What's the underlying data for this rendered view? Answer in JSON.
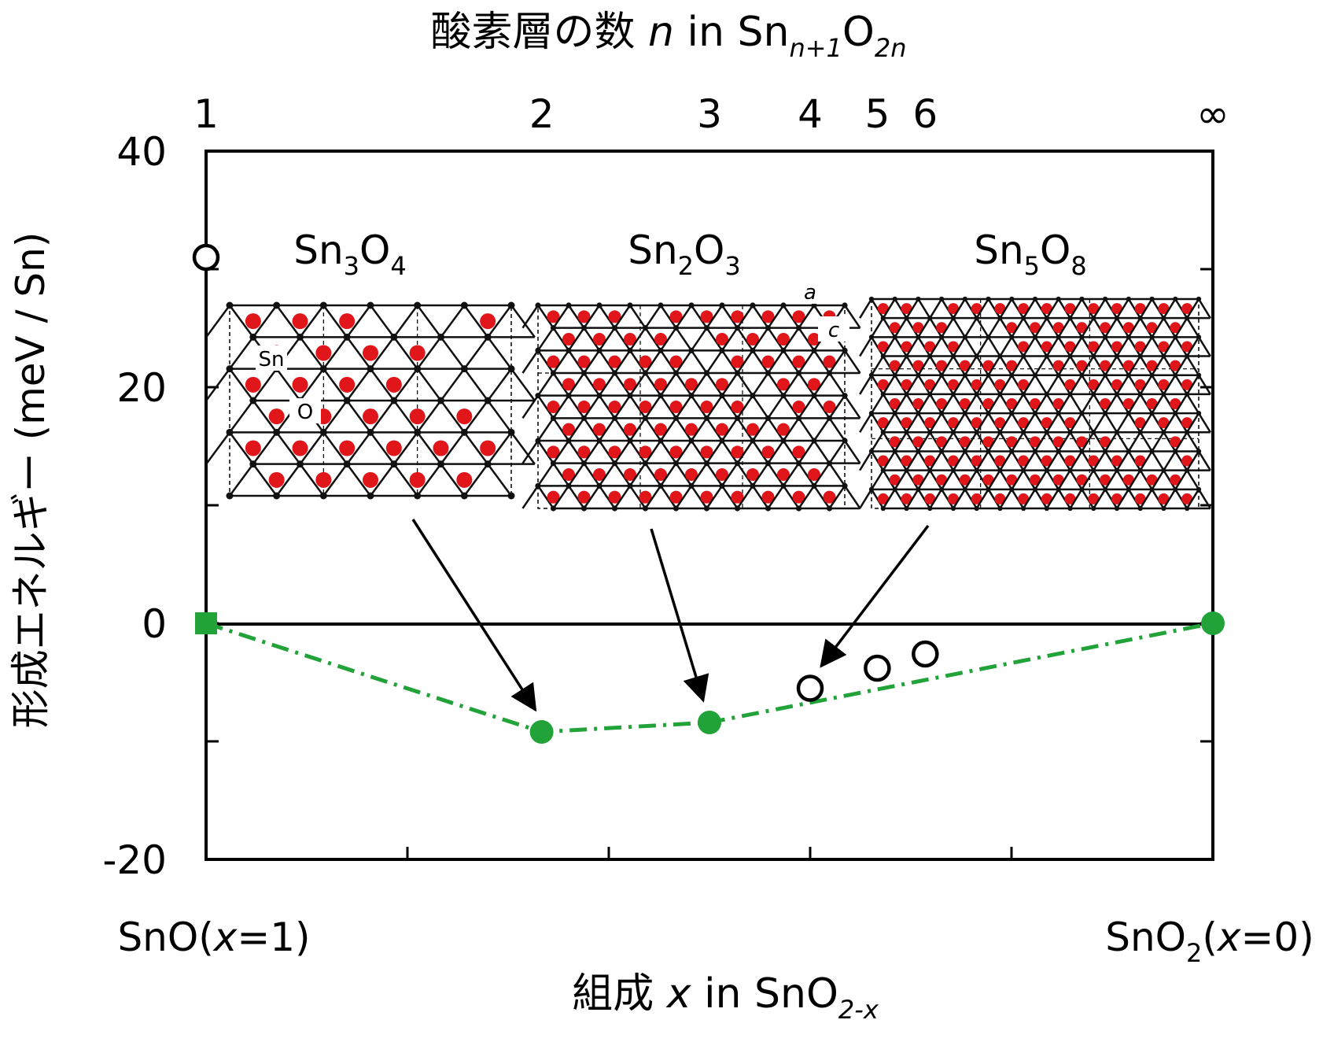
{
  "top_axis": {
    "label_main": "酸素層の数 ",
    "label_n": "n",
    "label_in": " in Sn",
    "label_sub1": "n+1",
    "label_O": "O",
    "label_sub2": "2n",
    "ticks": [
      {
        "label": "1",
        "x": 1.0
      },
      {
        "label": "2",
        "x": 0.6667
      },
      {
        "label": "3",
        "x": 0.5
      },
      {
        "label": "4",
        "x": 0.4
      },
      {
        "label": "5",
        "x": 0.3333
      },
      {
        "label": "6",
        "x": 0.2857
      },
      {
        "label": "∞",
        "x": 0.0
      }
    ]
  },
  "bottom_axis": {
    "label_main": "組成 ",
    "label_x": "x",
    "label_in": " in SnO",
    "label_sub": "2-x",
    "left_end": {
      "pre": "SnO(",
      "var": "x",
      "post": "=1)"
    },
    "right_end": {
      "pre": "SnO",
      "sub": "2",
      "mid": "(",
      "var": "x",
      "post": "=0)"
    }
  },
  "y_axis": {
    "label": "形成エネルギー (meV / Sn)",
    "ticks": [
      "40",
      "20",
      "0",
      "-20"
    ]
  },
  "insets": [
    {
      "name": "Sn3O4",
      "base1": "Sn",
      "sub1": "3",
      "base2": "O",
      "sub2": "4",
      "labels": [
        "Sn",
        "O"
      ]
    },
    {
      "name": "Sn2O3",
      "base1": "Sn",
      "sub1": "2",
      "base2": "O",
      "sub2": "3",
      "labels": [
        "a",
        "c"
      ]
    },
    {
      "name": "Sn5O8",
      "base1": "Sn",
      "sub1": "5",
      "base2": "O",
      "sub2": "8",
      "labels": []
    }
  ],
  "colors": {
    "hull": "#22a33a",
    "oxygen": "#e0161b",
    "tin": "#111111"
  },
  "chart_data": {
    "type": "scatter",
    "xlabel": "組成 x in SnO2-x",
    "ylabel": "形成エネルギー (meV / Sn)",
    "x2label": "酸素層の数 n in Sn(n+1)O(2n)",
    "xlim": [
      1,
      0
    ],
    "ylim": [
      -20,
      40
    ],
    "series": [
      {
        "marker": "filled-square",
        "color": "#22a33a",
        "points": [
          {
            "x": 1.0,
            "y": 0
          }
        ]
      },
      {
        "marker": "filled-circle",
        "color": "#22a33a",
        "points": [
          {
            "x": 0.6667,
            "y": -9.2
          },
          {
            "x": 0.5,
            "y": -8.4
          },
          {
            "x": 0.0,
            "y": 0
          }
        ]
      },
      {
        "marker": "open-circle",
        "color": "#000000",
        "points": [
          {
            "x": 1.0,
            "y": 31
          },
          {
            "x": 0.4,
            "y": -5.5
          },
          {
            "x": 0.3333,
            "y": -3.8
          },
          {
            "x": 0.2857,
            "y": -2.6
          }
        ]
      },
      {
        "marker": "dash-dot-line",
        "color": "#22a33a",
        "points": [
          {
            "x": 1.0,
            "y": 0
          },
          {
            "x": 0.6667,
            "y": -9.2
          },
          {
            "x": 0.5,
            "y": -8.4
          },
          {
            "x": 0.0,
            "y": 0
          }
        ]
      }
    ],
    "annotations": [
      {
        "text": "Sn3O4",
        "points_to_x": 0.6667
      },
      {
        "text": "Sn2O3",
        "points_to_x": 0.5
      },
      {
        "text": "Sn5O8",
        "points_to_x": 0.4
      }
    ]
  }
}
